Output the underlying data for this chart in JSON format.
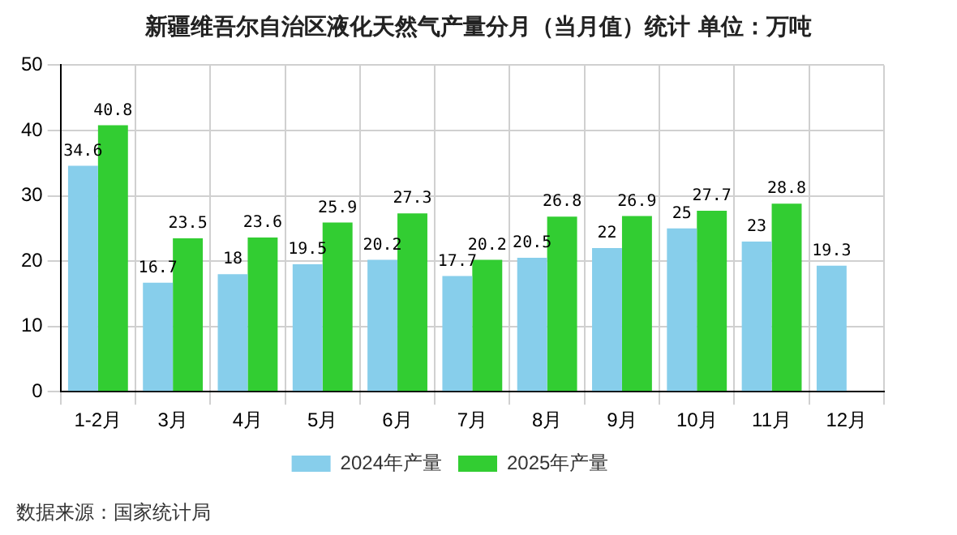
{
  "chart_data": {
    "type": "bar",
    "title": "新疆维吾尔自治区液化天然气产量分月（当月值）统计  单位：万吨",
    "categories": [
      "1-2月",
      "3月",
      "4月",
      "5月",
      "6月",
      "7月",
      "8月",
      "9月",
      "10月",
      "11月",
      "12月"
    ],
    "series": [
      {
        "name": "2024年产量",
        "color": "#87ceeb",
        "values": [
          34.6,
          16.7,
          18,
          19.5,
          20.2,
          17.7,
          20.5,
          22,
          25,
          23,
          19.3
        ]
      },
      {
        "name": "2025年产量",
        "color": "#32cd32",
        "values": [
          40.8,
          23.5,
          23.6,
          25.9,
          27.3,
          20.2,
          26.8,
          26.9,
          27.7,
          28.8,
          null
        ]
      }
    ],
    "ylim": [
      0,
      50
    ],
    "yticks": [
      0,
      10,
      20,
      30,
      40,
      50
    ],
    "grid": true,
    "legend": "bottom",
    "data_labels": true,
    "annotations": [
      "数据来源：国家统计局"
    ]
  }
}
